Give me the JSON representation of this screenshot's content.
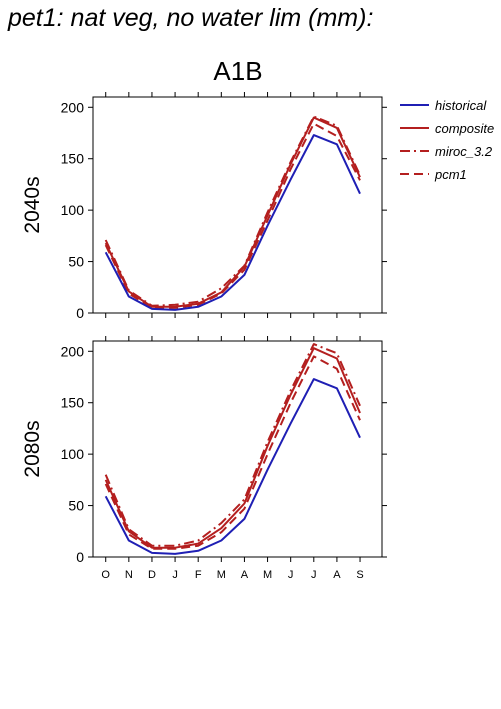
{
  "title": "pet1: nat veg, no water lim (mm):",
  "scenario": "A1B",
  "colors": {
    "historical": "#1f1fb4",
    "composite": "#b41f1f",
    "miroc": "#b41f1f",
    "pcm": "#b41f1f"
  },
  "chart_data": [
    {
      "type": "line",
      "panel_label": "2040s",
      "categories": [
        "O",
        "N",
        "D",
        "J",
        "F",
        "M",
        "A",
        "M",
        "J",
        "J",
        "A",
        "S"
      ],
      "ylim": [
        0,
        210
      ],
      "yticks": [
        0,
        50,
        100,
        150,
        200
      ],
      "grid": false,
      "series": [
        {
          "name": "historical",
          "style": "solid",
          "color": "#1f1fb4",
          "values": [
            59,
            16,
            4,
            3,
            6,
            16,
            37,
            85,
            130,
            173,
            164,
            116
          ]
        },
        {
          "name": "composite",
          "style": "solid",
          "color": "#b41f1f",
          "values": [
            68,
            21,
            6,
            6,
            9,
            20,
            45,
            95,
            145,
            190,
            180,
            132
          ]
        },
        {
          "name": "miroc_3.2",
          "style": "dashdot",
          "color": "#b41f1f",
          "values": [
            71,
            22,
            7,
            8,
            11,
            24,
            46,
            98,
            147,
            191,
            182,
            134
          ]
        },
        {
          "name": "pcm1",
          "style": "dashed",
          "color": "#b41f1f",
          "values": [
            66,
            19,
            5,
            5,
            8,
            19,
            42,
            90,
            140,
            184,
            172,
            129
          ]
        }
      ]
    },
    {
      "type": "line",
      "panel_label": "2080s",
      "categories": [
        "O",
        "N",
        "D",
        "J",
        "F",
        "M",
        "A",
        "M",
        "J",
        "J",
        "A",
        "S"
      ],
      "ylim": [
        0,
        210
      ],
      "yticks": [
        0,
        50,
        100,
        150,
        200
      ],
      "grid": false,
      "series": [
        {
          "name": "historical",
          "style": "solid",
          "color": "#1f1fb4",
          "values": [
            59,
            16,
            4,
            3,
            6,
            16,
            37,
            85,
            130,
            173,
            164,
            116
          ]
        },
        {
          "name": "composite",
          "style": "solid",
          "color": "#b41f1f",
          "values": [
            75,
            25,
            9,
            9,
            13,
            28,
            52,
            108,
            158,
            203,
            193,
            140
          ]
        },
        {
          "name": "miroc_3.2",
          "style": "dashdot",
          "color": "#b41f1f",
          "values": [
            80,
            27,
            11,
            11,
            16,
            33,
            56,
            112,
            162,
            207,
            198,
            147
          ]
        },
        {
          "name": "pcm1",
          "style": "dashed",
          "color": "#b41f1f",
          "values": [
            71,
            22,
            8,
            8,
            11,
            24,
            47,
            100,
            150,
            195,
            183,
            133
          ]
        }
      ]
    }
  ],
  "legend": {
    "placement": "right",
    "items": [
      {
        "label": "historical",
        "style": "solid",
        "color": "#1f1fb4"
      },
      {
        "label": "composite",
        "style": "solid",
        "color": "#b41f1f"
      },
      {
        "label": "miroc_3.2",
        "style": "dashdot",
        "color": "#b41f1f"
      },
      {
        "label": "pcm1",
        "style": "dashed",
        "color": "#b41f1f"
      }
    ]
  }
}
